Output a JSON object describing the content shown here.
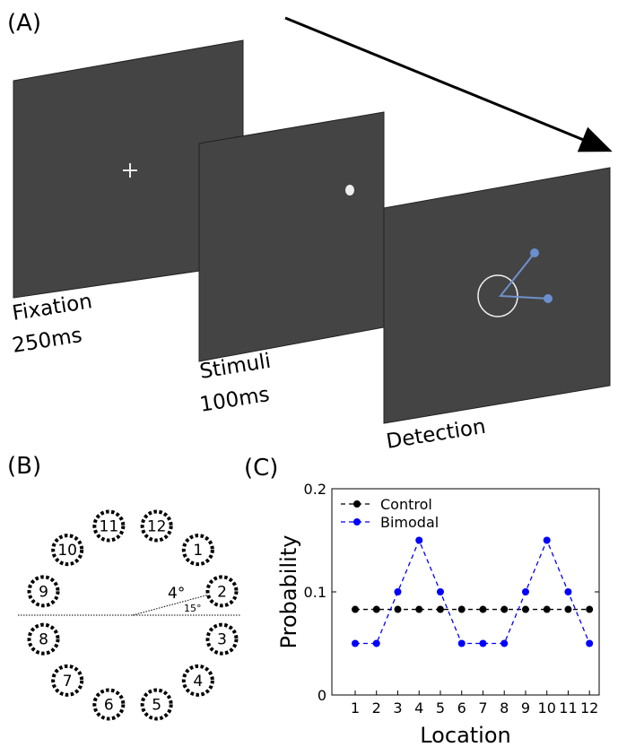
{
  "panel_a": {
    "label": "(A)",
    "screens": [
      {
        "name": "Fixation",
        "duration": "250ms"
      },
      {
        "name": "Stimuli",
        "duration": "100ms"
      },
      {
        "name": "Detection"
      }
    ]
  },
  "panel_b": {
    "label": "(B)",
    "locations": [
      "1",
      "2",
      "3",
      "4",
      "5",
      "6",
      "7",
      "8",
      "9",
      "10",
      "11",
      "12"
    ],
    "eccentricity": "4°",
    "angle": "15°"
  },
  "panel_c": {
    "label": "(C)"
  },
  "chart_data": {
    "type": "line",
    "x_label": "Location",
    "y_label": "Probability",
    "categories": [
      "1",
      "2",
      "3",
      "4",
      "5",
      "6",
      "7",
      "8",
      "9",
      "10",
      "11",
      "12"
    ],
    "series": [
      {
        "name": "Control",
        "color": "#000000",
        "values": [
          0.083,
          0.083,
          0.083,
          0.083,
          0.083,
          0.083,
          0.083,
          0.083,
          0.083,
          0.083,
          0.083,
          0.083
        ]
      },
      {
        "name": "Bimodal",
        "color": "#0000ff",
        "values": [
          0.05,
          0.05,
          0.1,
          0.15,
          0.1,
          0.05,
          0.05,
          0.05,
          0.1,
          0.15,
          0.1,
          0.05
        ]
      }
    ],
    "ylim": [
      0,
      0.2
    ],
    "yticks": [
      0,
      0.1,
      0.2
    ],
    "legend": "upper left",
    "grid": false
  }
}
